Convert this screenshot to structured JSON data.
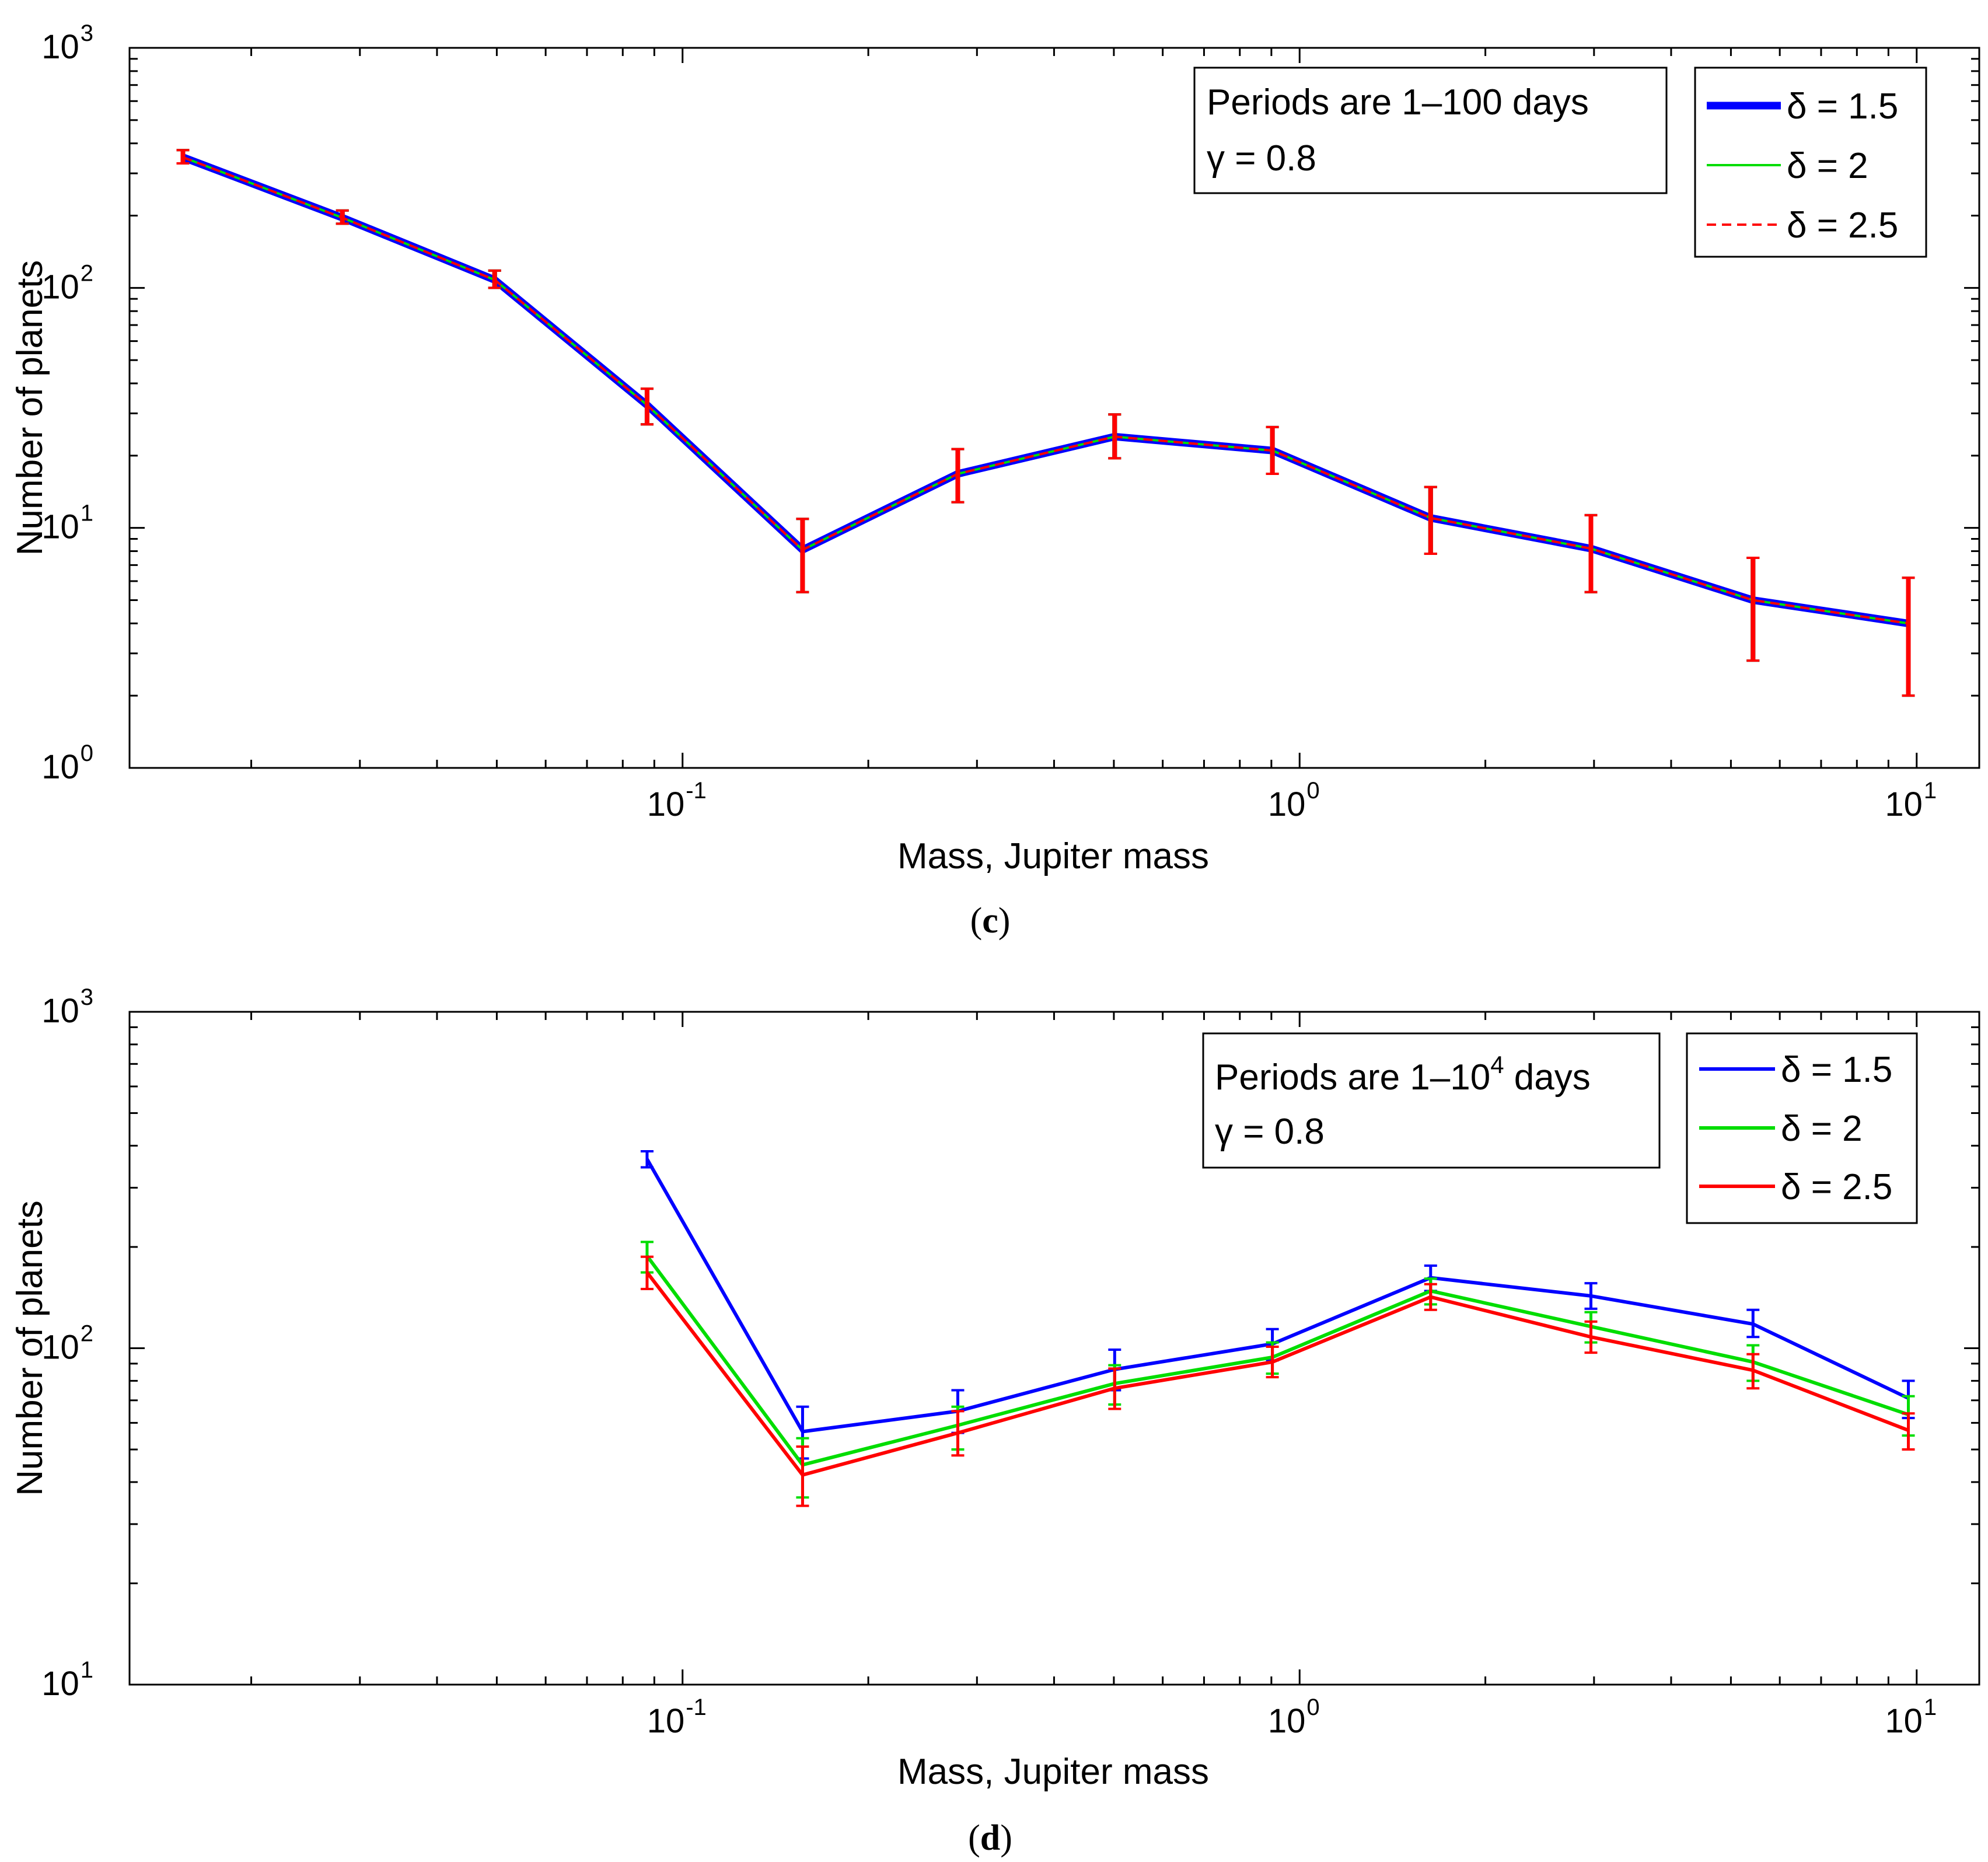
{
  "chart_data": [
    {
      "type": "line",
      "panel": "c",
      "caption": "c",
      "xlabel": "Mass, Jupiter mass",
      "ylabel": "Number of planets",
      "xscale": "log",
      "yscale": "log",
      "xlim": [
        0.0127,
        12.63
      ],
      "ylim": [
        1,
        1000
      ],
      "grid": false,
      "x_ticks": [
        {
          "base": "10",
          "exp": "-1"
        },
        {
          "base": "10",
          "exp": "0"
        },
        {
          "base": "10",
          "exp": "1"
        }
      ],
      "y_ticks": [
        {
          "base": "10",
          "exp": "0"
        },
        {
          "base": "10",
          "exp": "1"
        },
        {
          "base": "10",
          "exp": "2"
        },
        {
          "base": "10",
          "exp": "3"
        }
      ],
      "annotation": {
        "line1": "Periods are 1–100 days",
        "line2": "γ = 0.8"
      },
      "legend_position": "top-right",
      "x": [
        0.0155,
        0.0281,
        0.0496,
        0.0876,
        0.1565,
        0.2793,
        0.5015,
        0.9034,
        1.6305,
        2.9655,
        5.4296,
        9.6944
      ],
      "series": [
        {
          "name": "δ = 1.5",
          "legend": "δ = 1.5",
          "color": "#0000ff",
          "style": "solid",
          "weight": "thick",
          "values": [
            350,
            196,
            108,
            32.5,
            8.1,
            16.8,
            24,
            21,
            11,
            8.2,
            5,
            4
          ],
          "err": [
            [
              330,
              375
            ],
            [
              185,
              210
            ],
            [
              100,
              118
            ],
            [
              27,
              38
            ],
            [
              5.4,
              10.9
            ],
            [
              12.8,
              21.3
            ],
            [
              19.5,
              29.7
            ],
            [
              16.8,
              26.3
            ],
            [
              7.8,
              14.8
            ],
            [
              5.4,
              11.3
            ],
            [
              2.8,
              7.5
            ],
            [
              2,
              6.2
            ]
          ]
        },
        {
          "name": "δ = 2",
          "legend": "δ = 2",
          "color": "#00dd00",
          "style": "solid",
          "weight": "thin",
          "values": [
            350,
            196,
            108,
            32.5,
            8.1,
            16.8,
            24,
            21,
            11,
            8.2,
            5,
            4
          ],
          "err": [
            [
              330,
              375
            ],
            [
              185,
              210
            ],
            [
              100,
              118
            ],
            [
              27,
              38
            ],
            [
              5.4,
              10.9
            ],
            [
              12.8,
              21.3
            ],
            [
              19.5,
              29.7
            ],
            [
              16.8,
              26.3
            ],
            [
              7.8,
              14.8
            ],
            [
              5.4,
              11.3
            ],
            [
              2.8,
              7.5
            ],
            [
              2,
              6.2
            ]
          ]
        },
        {
          "name": "δ = 2.5",
          "legend": "δ = 2.5",
          "color": "#ff0000",
          "style": "dashed",
          "weight": "thin",
          "values": [
            350,
            196,
            108,
            32.5,
            8.1,
            16.8,
            24,
            21,
            11,
            8.2,
            5,
            4
          ],
          "err": [
            [
              330,
              375
            ],
            [
              185,
              210
            ],
            [
              100,
              118
            ],
            [
              27,
              38
            ],
            [
              5.4,
              10.9
            ],
            [
              12.8,
              21.3
            ],
            [
              19.5,
              29.7
            ],
            [
              16.8,
              26.3
            ],
            [
              7.8,
              14.8
            ],
            [
              5.4,
              11.3
            ],
            [
              2.8,
              7.5
            ],
            [
              2,
              6.2
            ]
          ]
        }
      ]
    },
    {
      "type": "line",
      "panel": "d",
      "caption": "d",
      "xlabel": "Mass, Jupiter mass",
      "ylabel": "Number of planets",
      "xscale": "log",
      "yscale": "log",
      "xlim": [
        0.0127,
        12.63
      ],
      "ylim": [
        10,
        1000
      ],
      "grid": false,
      "x_ticks": [
        {
          "base": "10",
          "exp": "-1"
        },
        {
          "base": "10",
          "exp": "0"
        },
        {
          "base": "10",
          "exp": "1"
        }
      ],
      "y_ticks": [
        {
          "base": "10",
          "exp": "1"
        },
        {
          "base": "10",
          "exp": "2"
        },
        {
          "base": "10",
          "exp": "3"
        }
      ],
      "annotation": {
        "line1": "Periods are 1–10",
        "line1_sup": "4",
        "line1_suffix": " days",
        "line2": "γ = 0.8"
      },
      "legend_position": "top-right",
      "x": [
        0.0876,
        0.1565,
        0.2793,
        0.5015,
        0.9034,
        1.6305,
        2.9655,
        5.4296,
        9.6944
      ],
      "series": [
        {
          "name": "δ = 1.5",
          "legend": "δ = 1.5",
          "color": "#0000ff",
          "style": "solid",
          "weight": "normal",
          "values": [
            365,
            56.5,
            65,
            86.5,
            103,
            162,
            143,
            118,
            71
          ],
          "err": [
            [
              345,
              385
            ],
            [
              47,
              67
            ],
            [
              56,
              75
            ],
            [
              75,
              99
            ],
            [
              92,
              114
            ],
            [
              148,
              176
            ],
            [
              131,
              156
            ],
            [
              108,
              130
            ],
            [
              62,
              80
            ]
          ]
        },
        {
          "name": "δ = 2",
          "legend": "δ = 2",
          "color": "#00dd00",
          "style": "solid",
          "weight": "normal",
          "values": [
            188,
            45,
            59,
            78.5,
            94,
            148,
            116,
            91,
            63.5
          ],
          "err": [
            [
              168,
              207
            ],
            [
              36,
              54
            ],
            [
              50,
              67
            ],
            [
              68,
              89
            ],
            [
              84,
              104
            ],
            [
              135,
              161
            ],
            [
              104,
              128
            ],
            [
              80,
              102
            ],
            [
              55,
              72
            ]
          ]
        },
        {
          "name": "δ = 2.5",
          "legend": "δ = 2.5",
          "color": "#ff0000",
          "style": "solid",
          "weight": "normal",
          "values": [
            168,
            42,
            56,
            76,
            91,
            142,
            108,
            86,
            57
          ],
          "err": [
            [
              150,
              187
            ],
            [
              34,
              51
            ],
            [
              48,
              65
            ],
            [
              66,
              87
            ],
            [
              82,
              101
            ],
            [
              130,
              155
            ],
            [
              97,
              120
            ],
            [
              76,
              96
            ],
            [
              50,
              64
            ]
          ]
        }
      ]
    }
  ]
}
